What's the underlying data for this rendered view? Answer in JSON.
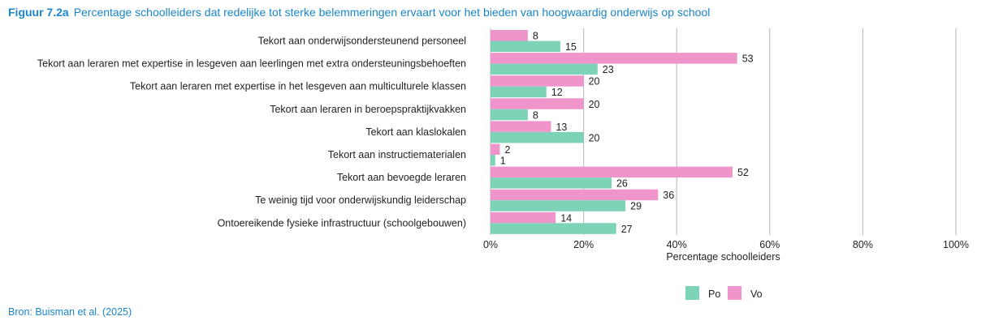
{
  "figure": {
    "number": "Figuur 7.2a",
    "title": "Percentage schoolleiders dat redelijke tot sterke belemmeringen ervaart voor het bieden van hoogwaardig onderwijs op school"
  },
  "source": "Bron: Buisman et al. (2025)",
  "colors": {
    "title": "#1a86c9",
    "po": "#7dd3b7",
    "vo": "#f095cb",
    "grid": "#b5b5b5"
  },
  "chart_data": {
    "type": "bar",
    "orientation": "horizontal",
    "categories": [
      "Tekort aan onderwijsondersteunend personeel",
      "Tekort aan leraren met expertise in lesgeven aan leerlingen met extra ondersteuningsbehoeften",
      "Tekort aan leraren met expertise in het lesgeven aan multiculturele klassen",
      "Tekort aan leraren in beroepspraktijkvakken",
      "Tekort aan klaslokalen",
      "Tekort aan instructiematerialen",
      "Tekort aan bevoegde leraren",
      "Te weinig tijd voor onderwijskundig leiderschap",
      "Ontoereikende fysieke infrastructuur (schoolgebouwen)"
    ],
    "series": [
      {
        "name": "Vo",
        "color": "#f095cb",
        "values": [
          8,
          53,
          20,
          20,
          13,
          2,
          52,
          36,
          14
        ]
      },
      {
        "name": "Po",
        "color": "#7dd3b7",
        "values": [
          15,
          23,
          12,
          8,
          20,
          1,
          26,
          29,
          27
        ]
      }
    ],
    "xlabel": "Percentage schoolleiders",
    "xlim": [
      0,
      100
    ],
    "xticks": [
      0,
      20,
      40,
      60,
      80,
      100
    ],
    "xtick_labels": [
      "0%",
      "20%",
      "40%",
      "60%",
      "80%",
      "100%"
    ],
    "grid": true,
    "legend": {
      "placement": "bottom-right",
      "entries": [
        {
          "name": "Po",
          "color": "#7dd3b7"
        },
        {
          "name": "Vo",
          "color": "#f095cb"
        }
      ]
    }
  }
}
